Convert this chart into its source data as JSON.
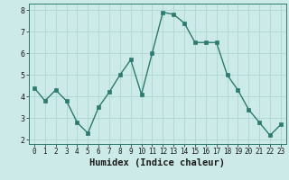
{
  "x": [
    0,
    1,
    2,
    3,
    4,
    5,
    6,
    7,
    8,
    9,
    10,
    11,
    12,
    13,
    14,
    15,
    16,
    17,
    18,
    19,
    20,
    21,
    22,
    23
  ],
  "y": [
    4.4,
    3.8,
    4.3,
    3.8,
    2.8,
    2.3,
    3.5,
    4.2,
    5.0,
    5.7,
    4.1,
    6.0,
    7.9,
    7.8,
    7.4,
    6.5,
    6.5,
    6.5,
    5.0,
    4.3,
    3.4,
    2.8,
    2.2,
    2.7
  ],
  "xlabel": "Humidex (Indice chaleur)",
  "line_color": "#2d7a6e",
  "marker_color": "#2d7a6e",
  "bg_color": "#cceae7",
  "grid_color": "#aed6d2",
  "xlim": [
    -0.5,
    23.5
  ],
  "ylim": [
    1.8,
    8.3
  ],
  "yticks": [
    2,
    3,
    4,
    5,
    6,
    7,
    8
  ],
  "xticks": [
    0,
    1,
    2,
    3,
    4,
    5,
    6,
    7,
    8,
    9,
    10,
    11,
    12,
    13,
    14,
    15,
    16,
    17,
    18,
    19,
    20,
    21,
    22,
    23
  ],
  "tick_fontsize": 5.5,
  "xlabel_fontsize": 7.5
}
